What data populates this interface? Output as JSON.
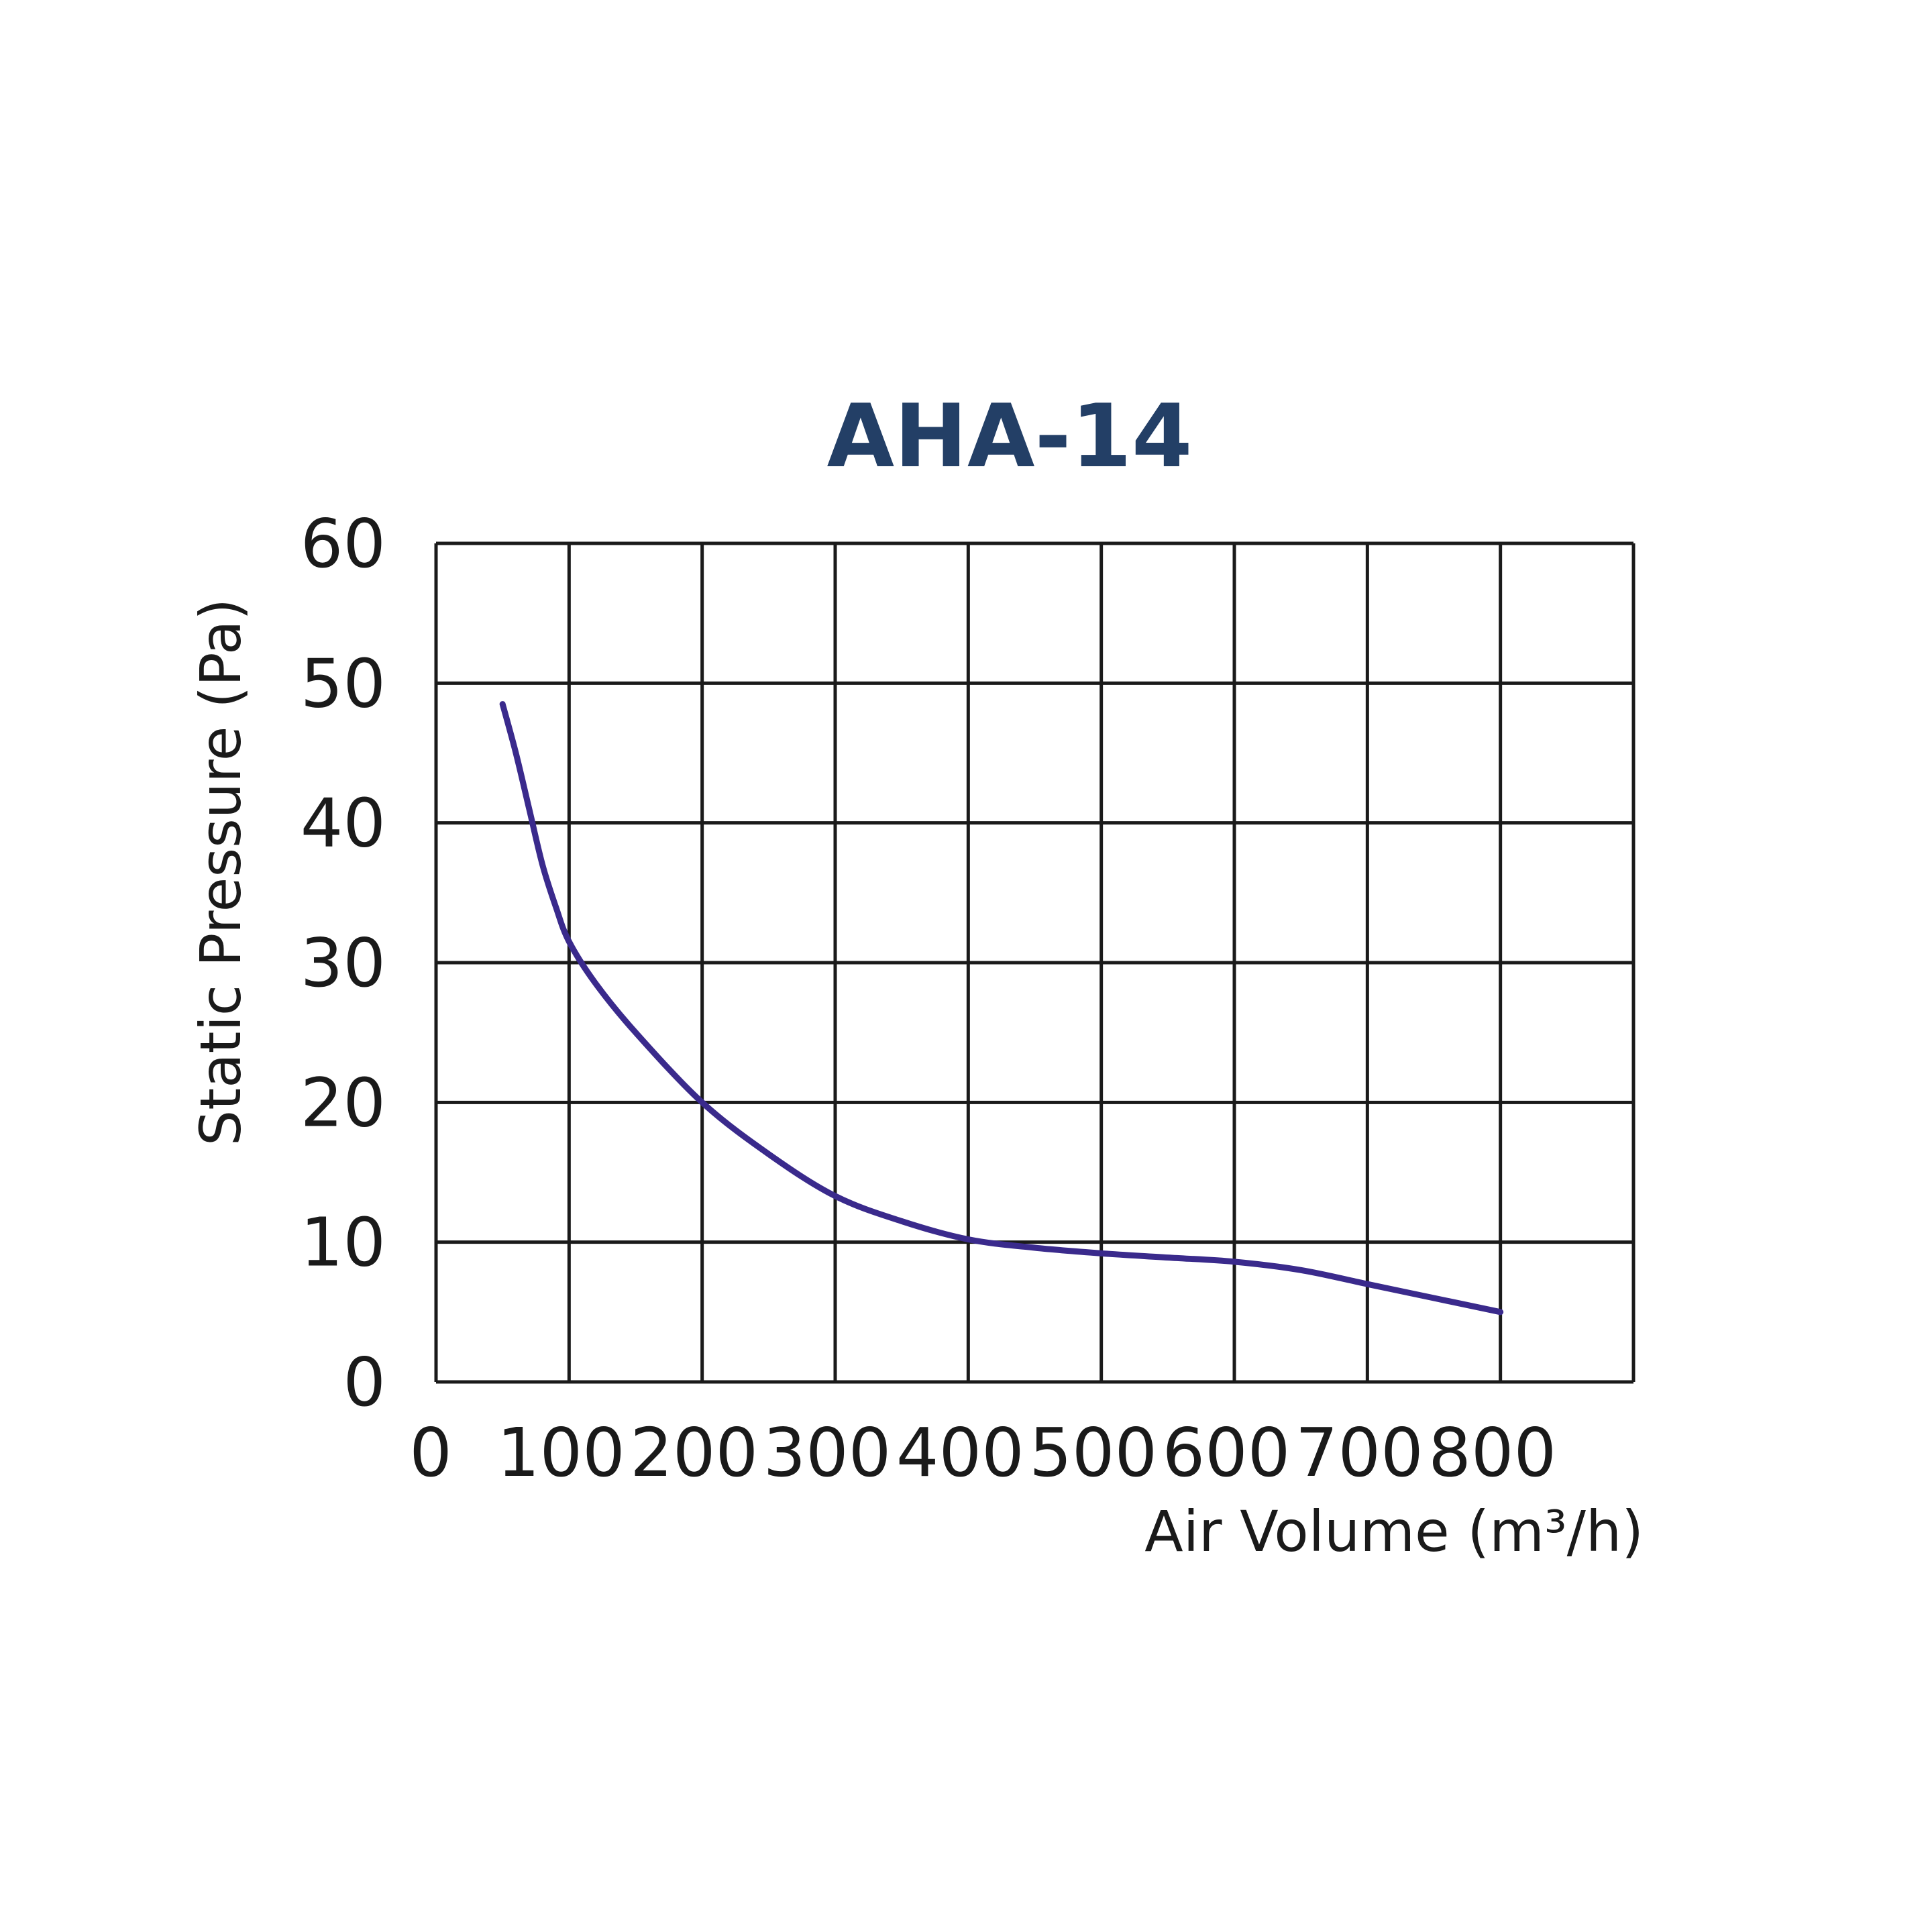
{
  "chart_data": {
    "type": "line",
    "title": "AHA-14",
    "xlabel": "Air Volume (m³/h)",
    "ylabel": "Static Pressure (Pa)",
    "xlim": [
      0,
      800
    ],
    "ylim": [
      0,
      60
    ],
    "x_ticks": [
      "0",
      "100",
      "200",
      "300",
      "400",
      "500",
      "600",
      "700",
      "800"
    ],
    "y_ticks": [
      "0",
      "10",
      "20",
      "30",
      "40",
      "50",
      "60"
    ],
    "grid": true,
    "legend": "none",
    "colors": {
      "title": "#233f66",
      "line": "#3a2a8c",
      "grid": "#1a1a1a",
      "text": "#1a1a1a"
    },
    "series": [
      {
        "values": [
          [
            50,
            48.5
          ],
          [
            60,
            45
          ],
          [
            70,
            41
          ],
          [
            80,
            37
          ],
          [
            90,
            34
          ],
          [
            100,
            31.5
          ],
          [
            120,
            28.5
          ],
          [
            150,
            25
          ],
          [
            200,
            20
          ],
          [
            250,
            16.3
          ],
          [
            300,
            13.3
          ],
          [
            350,
            11.5
          ],
          [
            400,
            10.2
          ],
          [
            450,
            9.6
          ],
          [
            500,
            9.2
          ],
          [
            550,
            8.9
          ],
          [
            600,
            8.6
          ],
          [
            650,
            8.0
          ],
          [
            700,
            7.0
          ],
          [
            750,
            6.0
          ],
          [
            800,
            5.0
          ]
        ]
      }
    ]
  }
}
